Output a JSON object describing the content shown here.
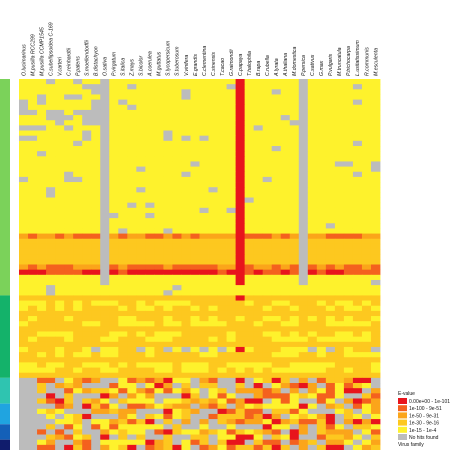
{
  "chart_data": {
    "type": "heatmap",
    "columns": [
      "O.lucimarinus",
      "M.pusilla RCC299",
      "M.pusilla CCMP1545",
      "C.subellipsoidea C-169",
      "V.carteri",
      "C.reinhardtii",
      "P.patens",
      "S.moellendorffii",
      "B.distachyon",
      "O.sativa",
      "P.virgatum",
      "S.italica",
      "Z.mays",
      "S.bicolor",
      "A.coerulea",
      "M.guttatus",
      "S.lycopersicum",
      "S.tuberosum",
      "V.vinifera",
      "E.grandis",
      "C.clementina",
      "C.sinensis",
      "T.cacao",
      "G.raimondii",
      "C.papaya",
      "T.halophila",
      "B.rapa",
      "C.rubella",
      "A.lyrata",
      "A.thaliana",
      "M.domestica",
      "P.persica",
      "C.sativus",
      "G.max",
      "P.vulgaris",
      "M.truncatula",
      "P.trichocarpa",
      "L.usitatissimum",
      "R.communis",
      "M.esculenta"
    ],
    "num_rows": 72,
    "color_scale": [
      {
        "label": "0.00e+00 - 1e-101",
        "color": "#e8141c"
      },
      {
        "label": "1e-100 - 9e-51",
        "color": "#f4611e"
      },
      {
        "label": "1e-50 - 9e-31",
        "color": "#fba51a"
      },
      {
        "label": "1e-30 - 9e-16",
        "color": "#fdc81f"
      },
      {
        "label": "1e-15 - 1e-4",
        "color": "#fef22c"
      },
      {
        "label": "No hits found",
        "color": "#bcbcbc"
      }
    ],
    "row_groups": [
      {
        "rows": [
          0,
          41
        ],
        "color": "#7bd25a"
      },
      {
        "rows": [
          42,
          57
        ],
        "color": "#14b26a"
      },
      {
        "rows": [
          58,
          62
        ],
        "color": "#2fc4b0"
      },
      {
        "rows": [
          63,
          66
        ],
        "color": "#20a4e0"
      },
      {
        "rows": [
          67,
          69
        ],
        "color": "#1460b8"
      },
      {
        "rows": [
          70,
          71
        ],
        "color": "#101c6c"
      }
    ],
    "legend_title": "E-value",
    "group_legend_title": "Virus family",
    "legend_position": "bottom-right"
  }
}
